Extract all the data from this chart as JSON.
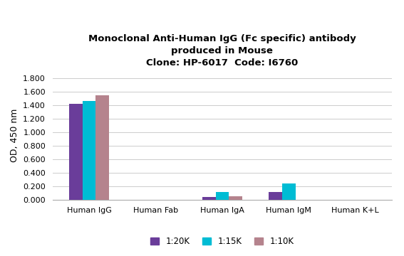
{
  "title_line1": "Monoclonal Anti-Human IgG (Fc specific) antibody",
  "title_line2": "produced in Mouse",
  "title_line3": "Clone: HP-6017  Code: I6760",
  "categories": [
    "Human IgG",
    "Human Fab",
    "Human IgA",
    "Human IgM",
    "Human K+L"
  ],
  "series": {
    "1:20K": [
      1.42,
      0.0,
      0.04,
      0.11,
      0.0
    ],
    "1:15K": [
      1.47,
      0.0,
      0.115,
      0.24,
      0.0
    ],
    "1:10K": [
      1.55,
      0.0,
      0.055,
      0.0,
      0.0
    ]
  },
  "colors": {
    "1:20K": "#6a3d9a",
    "1:15K": "#00bcd4",
    "1:10K": "#b5838d"
  },
  "ylabel": "OD, 450 nm",
  "ylim": [
    0,
    1.9
  ],
  "yticks": [
    0.0,
    0.2,
    0.4,
    0.6,
    0.8,
    1.0,
    1.2,
    1.4,
    1.6,
    1.8
  ],
  "bar_width": 0.2,
  "background_color": "#ffffff",
  "grid_color": "#cccccc",
  "title_fontsize": 9.5,
  "axis_label_fontsize": 9,
  "tick_fontsize": 8,
  "legend_fontsize": 8.5
}
